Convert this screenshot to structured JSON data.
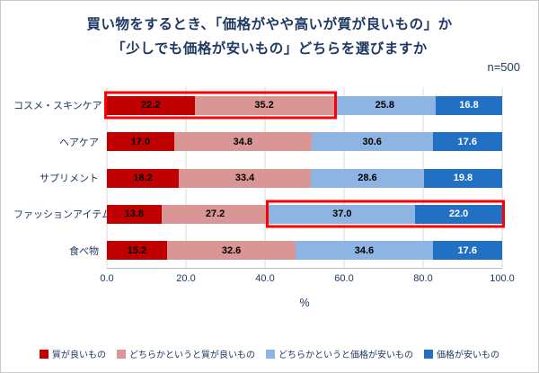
{
  "header": {
    "title_line1": "買い物をするとき、「価格がやや高いが質が良いもの」か",
    "title_line2": "「少しでも価格が安いもの」どちらを選びますか",
    "sample_size": "n=500"
  },
  "chart_data": {
    "type": "bar",
    "orientation": "horizontal_stacked",
    "title": "買い物をするとき、「価格がやや高いが質が良いもの」か「少しでも価格が安いもの」どちらを選びますか",
    "categories": [
      "コスメ・スキンケア",
      "ヘアケア",
      "サプリメント",
      "ファッションアイテム",
      "食べ物"
    ],
    "series": [
      {
        "name": "質が良いもの",
        "color": "#C00000",
        "label_color": "#000000",
        "values": [
          22.2,
          17.0,
          18.2,
          13.8,
          15.2
        ]
      },
      {
        "name": "どちらかというと質が良いもの",
        "color": "#D99694",
        "label_color": "#000000",
        "values": [
          35.2,
          34.8,
          33.4,
          27.2,
          32.6
        ]
      },
      {
        "name": "どちらかというと価格が安いもの",
        "color": "#8DB4E2",
        "label_color": "#000000",
        "values": [
          25.8,
          30.6,
          28.6,
          37.0,
          34.6
        ]
      },
      {
        "name": "価格が安いもの",
        "color": "#2170C4",
        "label_color": "#FFFFFF",
        "values": [
          16.8,
          17.6,
          19.8,
          22.0,
          17.6
        ]
      }
    ],
    "x_ticks": [
      "0.0",
      "20.0",
      "40.0",
      "60.0",
      "80.0",
      "100.0"
    ],
    "xlim": [
      0,
      100
    ],
    "xlabel": "%",
    "grid": true,
    "legend_position": "bottom",
    "highlight_color": "#FF0000",
    "highlights": [
      {
        "row": 0,
        "start": 0.0,
        "end": 57.4
      },
      {
        "row": 3,
        "start": 41.0,
        "end": 100.0
      }
    ]
  }
}
